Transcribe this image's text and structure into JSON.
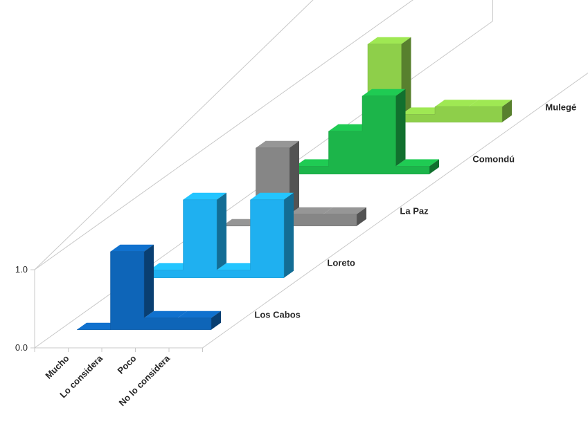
{
  "chart_data": {
    "type": "bar",
    "subtype": "3d-stepped-area",
    "categories": [
      "Mucho",
      "Lo considera",
      "Poco",
      "No lo considera"
    ],
    "yticks": [
      "0.0",
      "1.0"
    ],
    "ylim": [
      0,
      2.2
    ],
    "series": [
      {
        "name": "Los Cabos",
        "color": "#0e65b8",
        "values": [
          0,
          1.0,
          0.15,
          0.15
        ]
      },
      {
        "name": "Loreto",
        "color": "#1fb0f0",
        "values": [
          0.1,
          1.0,
          0.1,
          1.0
        ]
      },
      {
        "name": "La Paz",
        "color": "#868686",
        "values": [
          0,
          1.0,
          0.15,
          0.15
        ]
      },
      {
        "name": "Comondú",
        "color": "#1cb54a",
        "values": [
          0.1,
          0.55,
          1.0,
          0.1
        ]
      },
      {
        "name": "Mulegé",
        "color": "#8ecf4a",
        "values": [
          1.0,
          0.1,
          0.2,
          0.2
        ]
      }
    ],
    "grid": false,
    "legend": "none"
  }
}
